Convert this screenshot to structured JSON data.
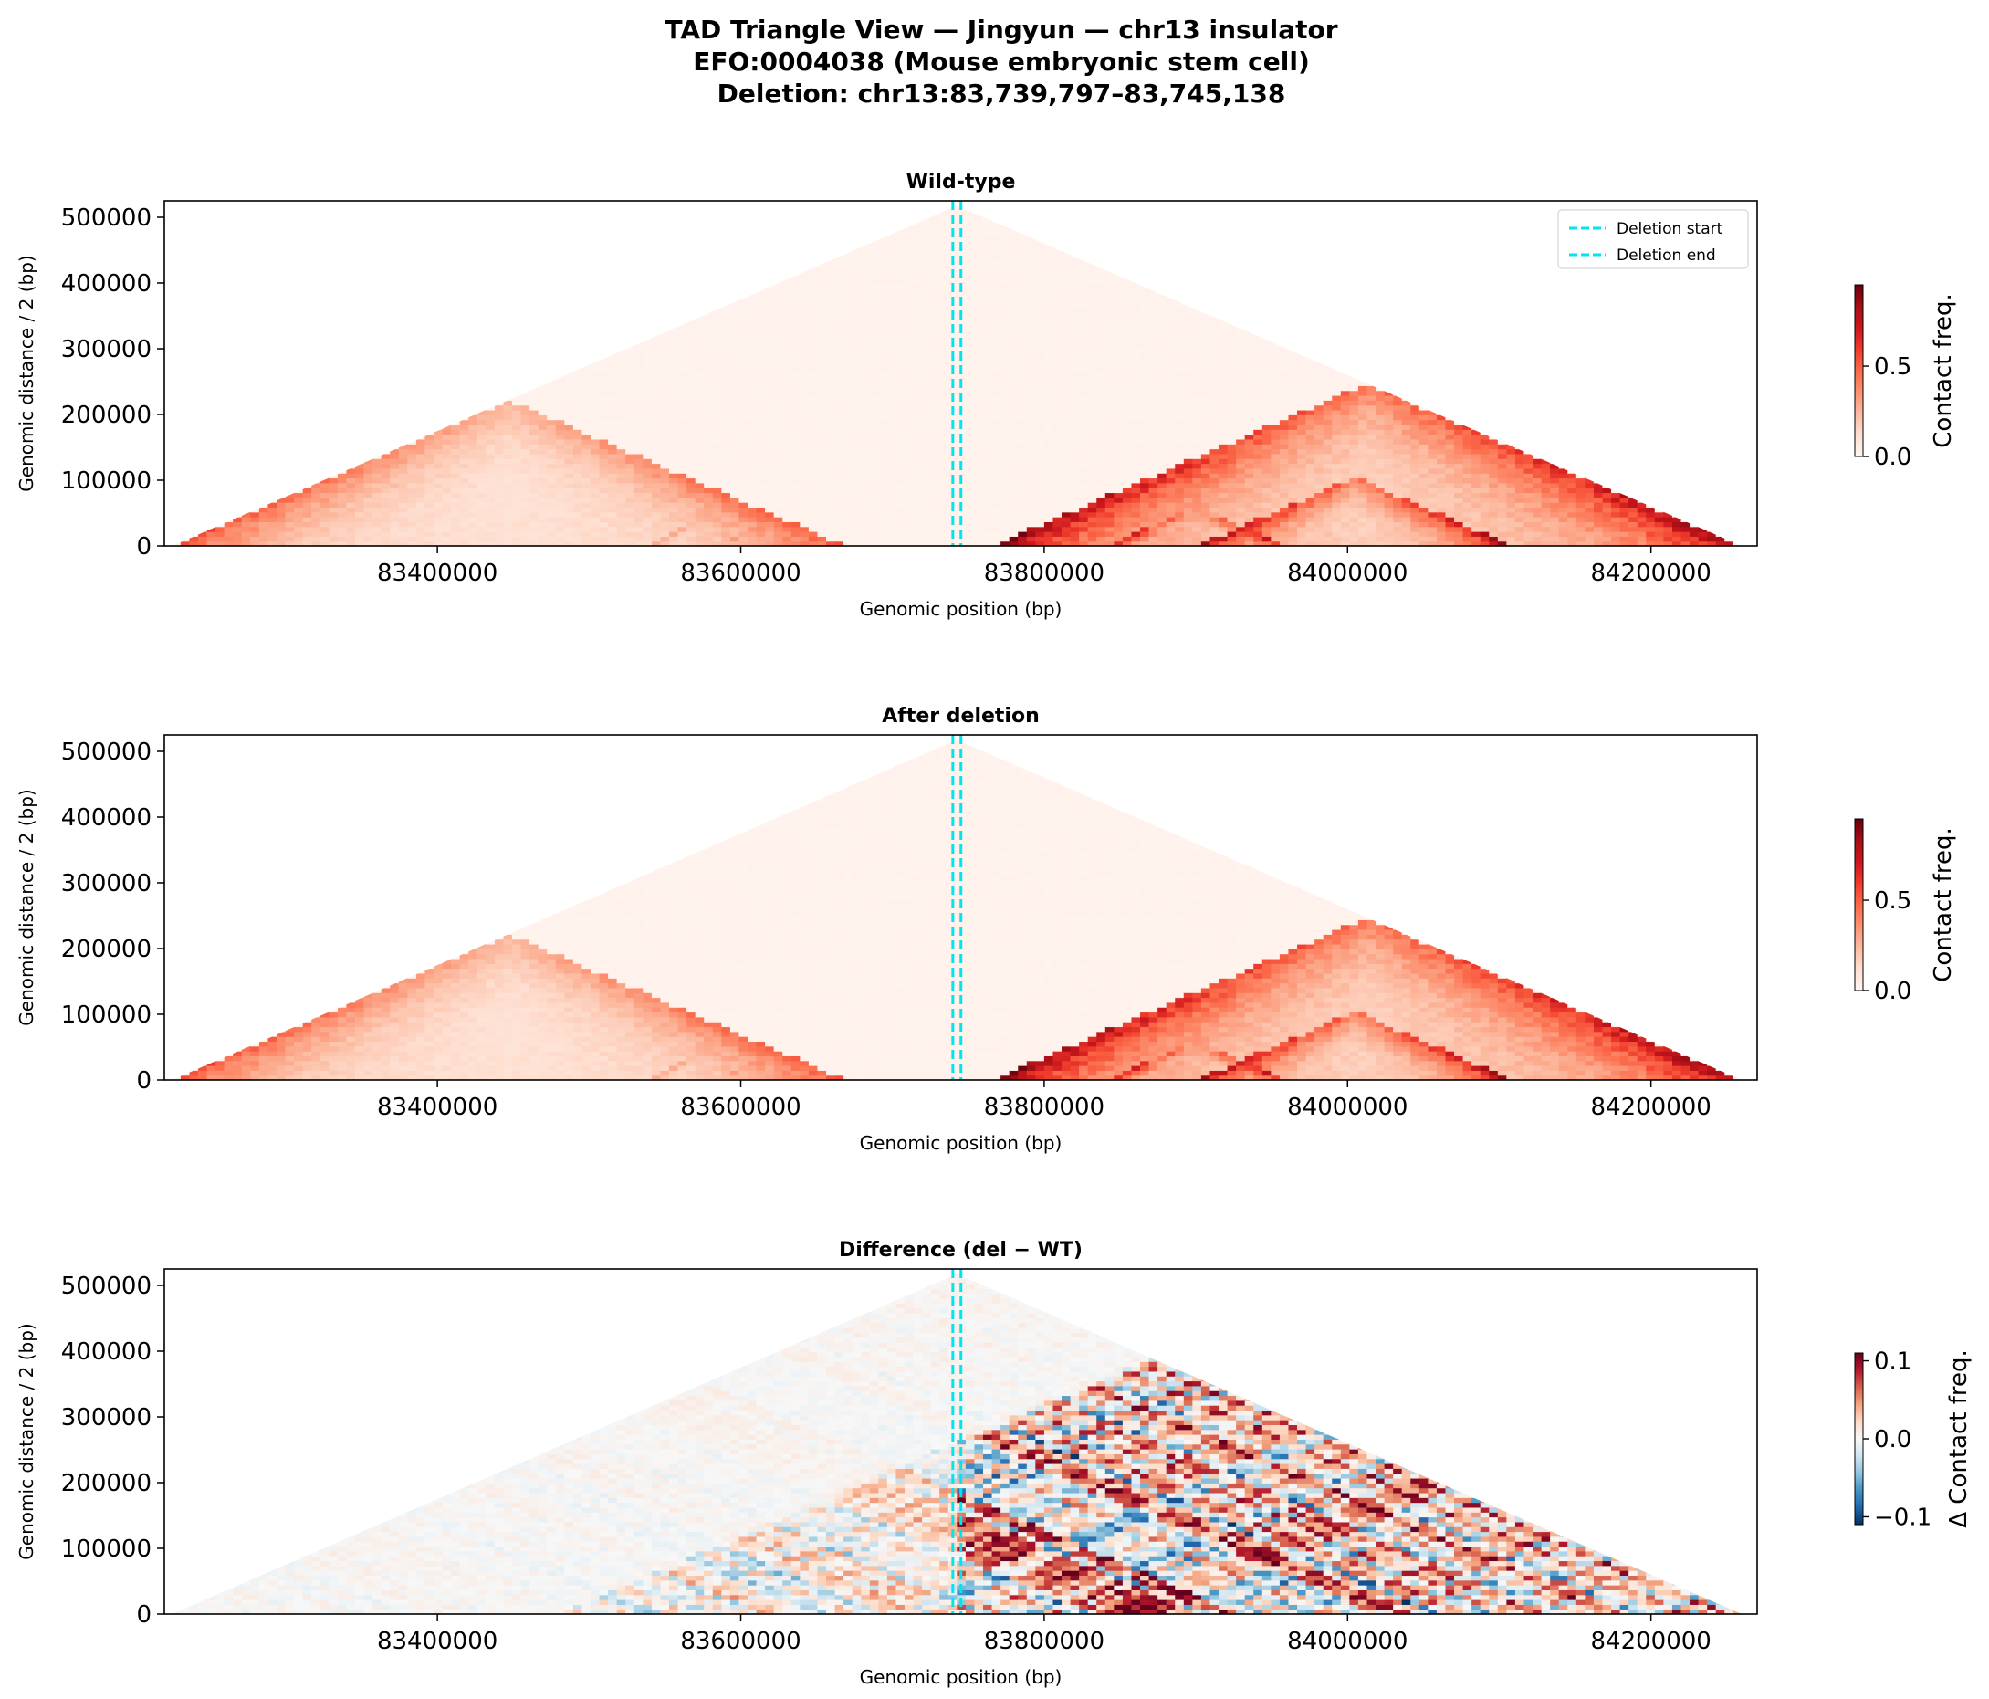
{
  "figure": {
    "title_lines": [
      "TAD Triangle View — Jingyun — chr13 insulator",
      "EFO:0004038 (Mouse embryonic stem cell)",
      "Deletion: chr13:83,739,797–83,745,138"
    ]
  },
  "colors": {
    "deletion_line": "#00e5ee",
    "reds_low": "#fff5f0",
    "reds_high": "#67000d",
    "diverging_neg": "#053061",
    "diverging_mid": "#f7f7f7",
    "diverging_pos": "#67001f"
  },
  "chart_data": [
    {
      "type": "heatmap",
      "title": "Wild-type",
      "xlabel": "Genomic position (bp)",
      "ylabel": "Genomic distance / 2 (bp)",
      "xlim": [
        83220000,
        84270000
      ],
      "ylim": [
        0,
        525000
      ],
      "xticks": [
        83400000,
        83600000,
        83800000,
        84000000,
        84200000
      ],
      "yticks": [
        0,
        100000,
        200000,
        300000,
        400000,
        500000
      ],
      "region": [
        83225000,
        84260000
      ],
      "colorbar": {
        "label": "Contact freq.",
        "range": [
          0,
          0.95
        ],
        "ticks": [
          0.0,
          0.5
        ],
        "colormap": "Reds"
      },
      "deletion": {
        "start": 83739797,
        "end": 83745138
      },
      "legend": {
        "position": "top-right",
        "entries": [
          "Deletion start",
          "Deletion end"
        ]
      },
      "domains": [
        {
          "start": 83225000,
          "end": 83670000,
          "peak": 0.6
        },
        {
          "start": 83535000,
          "end": 83610000,
          "peak": 0.5
        },
        {
          "start": 83765000,
          "end": 84260000,
          "peak": 0.95
        },
        {
          "start": 83840000,
          "end": 83960000,
          "peak": 0.9
        },
        {
          "start": 83900000,
          "end": 84110000,
          "peak": 0.95
        }
      ]
    },
    {
      "type": "heatmap",
      "title": "After deletion",
      "xlabel": "Genomic position (bp)",
      "ylabel": "Genomic distance / 2 (bp)",
      "xlim": [
        83220000,
        84270000
      ],
      "ylim": [
        0,
        525000
      ],
      "xticks": [
        83400000,
        83600000,
        83800000,
        84000000,
        84200000
      ],
      "yticks": [
        0,
        100000,
        200000,
        300000,
        400000,
        500000
      ],
      "region": [
        83225000,
        84260000
      ],
      "colorbar": {
        "label": "Contact freq.",
        "range": [
          0,
          0.95
        ],
        "ticks": [
          0.0,
          0.5
        ],
        "colormap": "Reds"
      },
      "deletion": {
        "start": 83739797,
        "end": 83745138
      },
      "domains": [
        {
          "start": 83225000,
          "end": 83670000,
          "peak": 0.6
        },
        {
          "start": 83535000,
          "end": 83610000,
          "peak": 0.5
        },
        {
          "start": 83765000,
          "end": 84260000,
          "peak": 0.95
        },
        {
          "start": 83840000,
          "end": 83960000,
          "peak": 0.9
        },
        {
          "start": 83900000,
          "end": 84110000,
          "peak": 0.95
        }
      ]
    },
    {
      "type": "heatmap",
      "title": "Difference (del − WT)",
      "xlabel": "Genomic position (bp)",
      "ylabel": "Genomic distance / 2 (bp)",
      "xlim": [
        83220000,
        84270000
      ],
      "ylim": [
        0,
        525000
      ],
      "xticks": [
        83400000,
        83600000,
        83800000,
        84000000,
        84200000
      ],
      "yticks": [
        0,
        100000,
        200000,
        300000,
        400000,
        500000
      ],
      "region": [
        83225000,
        84260000
      ],
      "colorbar": {
        "label": "Δ Contact freq.",
        "range": [
          -0.11,
          0.11
        ],
        "ticks": [
          -0.1,
          0.0,
          0.1
        ],
        "colormap": "RdBu_r"
      },
      "deletion": {
        "start": 83739797,
        "end": 83745138
      }
    }
  ]
}
